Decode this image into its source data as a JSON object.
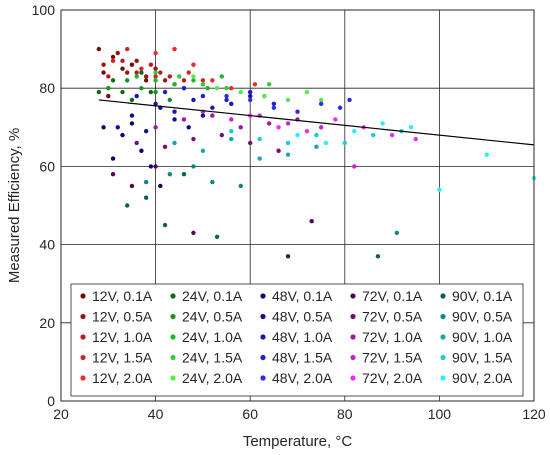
{
  "chart_data": {
    "type": "scatter",
    "title": "",
    "xlabel": "Temperature, °C",
    "ylabel": "Measured Efficiency, %",
    "xlim": [
      20,
      120
    ],
    "ylim": [
      0,
      100
    ],
    "xticks": [
      20,
      40,
      60,
      80,
      100,
      120
    ],
    "yticks": [
      0,
      20,
      40,
      60,
      80,
      100
    ],
    "grid": true,
    "legend_position": "bottom",
    "legend_columns": 5,
    "fit_line": {
      "x": [
        28,
        120
      ],
      "y": [
        77,
        65.5
      ],
      "color": "#000000"
    },
    "series": [
      {
        "name": "12V, 0.1A",
        "color": "#7a0a0a",
        "points": [
          [
            28,
            90
          ],
          [
            29,
            84
          ],
          [
            31,
            88
          ],
          [
            33,
            85
          ],
          [
            35,
            86
          ],
          [
            38,
            82
          ],
          [
            30,
            78
          ]
        ]
      },
      {
        "name": "12V, 0.5A",
        "color": "#991515",
        "points": [
          [
            29,
            86
          ],
          [
            32,
            89
          ],
          [
            34,
            84
          ],
          [
            36,
            87
          ],
          [
            38,
            83
          ],
          [
            40,
            85
          ],
          [
            42,
            82
          ]
        ]
      },
      {
        "name": "12V, 1.0A",
        "color": "#b81e1e",
        "points": [
          [
            30,
            83
          ],
          [
            33,
            87
          ],
          [
            36,
            84
          ],
          [
            39,
            86
          ],
          [
            41,
            84
          ],
          [
            43,
            83
          ],
          [
            46,
            82
          ]
        ]
      },
      {
        "name": "12V, 1.5A",
        "color": "#d42424",
        "points": [
          [
            31,
            87
          ],
          [
            34,
            90
          ],
          [
            37,
            85
          ],
          [
            40,
            83
          ],
          [
            44,
            81
          ],
          [
            47,
            84
          ],
          [
            50,
            82
          ]
        ]
      },
      {
        "name": "12V, 2.0A",
        "color": "#ee2a2a",
        "points": [
          [
            40,
            89
          ],
          [
            44,
            90
          ],
          [
            48,
            86
          ],
          [
            52,
            82
          ],
          [
            56,
            80
          ],
          [
            61,
            81
          ],
          [
            63,
            78
          ]
        ]
      },
      {
        "name": "24V, 0.1A",
        "color": "#0e6b14",
        "points": [
          [
            28,
            79
          ],
          [
            31,
            82
          ],
          [
            33,
            79
          ],
          [
            35,
            77
          ],
          [
            37,
            84
          ],
          [
            39,
            79
          ]
        ]
      },
      {
        "name": "24V, 0.5A",
        "color": "#169220",
        "points": [
          [
            30,
            80
          ],
          [
            34,
            82
          ],
          [
            37,
            80
          ],
          [
            40,
            79
          ],
          [
            43,
            77
          ],
          [
            46,
            80
          ]
        ]
      },
      {
        "name": "24V, 1.0A",
        "color": "#1fb42a",
        "points": [
          [
            36,
            83
          ],
          [
            40,
            82
          ],
          [
            44,
            81
          ],
          [
            48,
            82
          ],
          [
            51,
            80
          ],
          [
            54,
            83
          ]
        ]
      },
      {
        "name": "24V, 1.5A",
        "color": "#2ece35",
        "points": [
          [
            40,
            84
          ],
          [
            45,
            83
          ],
          [
            50,
            81
          ],
          [
            55,
            80
          ],
          [
            60,
            79
          ],
          [
            64,
            81
          ]
        ]
      },
      {
        "name": "24V, 2.0A",
        "color": "#52ec4e",
        "points": [
          [
            48,
            83
          ],
          [
            53,
            80
          ],
          [
            58,
            79
          ],
          [
            63,
            78
          ],
          [
            68,
            77
          ],
          [
            72,
            79
          ],
          [
            75,
            77
          ]
        ]
      },
      {
        "name": "48V, 0.1A",
        "color": "#0a0a68",
        "points": [
          [
            29,
            70
          ],
          [
            31,
            62
          ],
          [
            33,
            68
          ],
          [
            35,
            71
          ],
          [
            37,
            64
          ],
          [
            39,
            60
          ],
          [
            41,
            55
          ]
        ]
      },
      {
        "name": "48V, 0.5A",
        "color": "#10108c",
        "points": [
          [
            32,
            70
          ],
          [
            35,
            73
          ],
          [
            38,
            69
          ],
          [
            41,
            75
          ],
          [
            44,
            72
          ],
          [
            47,
            70
          ],
          [
            50,
            73
          ]
        ]
      },
      {
        "name": "48V, 1.0A",
        "color": "#1616b0",
        "points": [
          [
            36,
            78
          ],
          [
            40,
            76
          ],
          [
            44,
            74
          ],
          [
            48,
            77
          ],
          [
            52,
            75
          ],
          [
            56,
            76
          ],
          [
            60,
            78
          ]
        ]
      },
      {
        "name": "48V, 1.5A",
        "color": "#1e1ed0",
        "points": [
          [
            42,
            79
          ],
          [
            46,
            80
          ],
          [
            50,
            78
          ],
          [
            55,
            77
          ],
          [
            60,
            79
          ],
          [
            65,
            76
          ]
        ]
      },
      {
        "name": "48V, 2.0A",
        "color": "#2c2cf0",
        "points": [
          [
            55,
            78
          ],
          [
            60,
            77
          ],
          [
            65,
            75
          ],
          [
            70,
            74
          ],
          [
            75,
            76
          ],
          [
            79,
            75
          ],
          [
            81,
            77
          ]
        ]
      },
      {
        "name": "72V, 0.1A",
        "color": "#520852",
        "points": [
          [
            31,
            58
          ],
          [
            35,
            55
          ],
          [
            40,
            60
          ],
          [
            48,
            43
          ],
          [
            68,
            37
          ],
          [
            73,
            46
          ]
        ]
      },
      {
        "name": "72V, 0.5A",
        "color": "#780e78",
        "points": [
          [
            36,
            66
          ],
          [
            42,
            65
          ],
          [
            48,
            67
          ],
          [
            54,
            68
          ],
          [
            60,
            66
          ],
          [
            66,
            64
          ]
        ]
      },
      {
        "name": "72V, 1.0A",
        "color": "#a018a0",
        "points": [
          [
            40,
            70
          ],
          [
            46,
            72
          ],
          [
            52,
            73
          ],
          [
            58,
            70
          ],
          [
            64,
            71
          ],
          [
            70,
            72
          ]
        ]
      },
      {
        "name": "72V, 1.5A",
        "color": "#ca22ca",
        "points": [
          [
            50,
            74
          ],
          [
            56,
            72
          ],
          [
            62,
            73
          ],
          [
            68,
            71
          ],
          [
            75,
            70
          ],
          [
            82,
            60
          ]
        ]
      },
      {
        "name": "72V, 2.0A",
        "color": "#f02cf0",
        "points": [
          [
            60,
            73
          ],
          [
            66,
            70
          ],
          [
            72,
            69
          ],
          [
            78,
            72
          ],
          [
            84,
            70
          ],
          [
            90,
            68
          ],
          [
            95,
            67
          ]
        ]
      },
      {
        "name": "90V, 0.1A",
        "color": "#0a5e5e",
        "points": [
          [
            34,
            50
          ],
          [
            38,
            52
          ],
          [
            42,
            45
          ],
          [
            46,
            58
          ],
          [
            53,
            42
          ],
          [
            87,
            37
          ]
        ]
      },
      {
        "name": "90V, 0.5A",
        "color": "#0e8484",
        "points": [
          [
            38,
            56
          ],
          [
            43,
            58
          ],
          [
            48,
            60
          ],
          [
            52,
            56
          ],
          [
            58,
            55
          ],
          [
            91,
            43
          ]
        ]
      },
      {
        "name": "90V, 1.0A",
        "color": "#16a8a8",
        "points": [
          [
            44,
            66
          ],
          [
            50,
            64
          ],
          [
            56,
            67
          ],
          [
            62,
            62
          ],
          [
            68,
            63
          ],
          [
            74,
            65
          ]
        ]
      },
      {
        "name": "90V, 1.5A",
        "color": "#20cccc",
        "points": [
          [
            56,
            69
          ],
          [
            62,
            67
          ],
          [
            68,
            66
          ],
          [
            74,
            68
          ],
          [
            80,
            66
          ],
          [
            86,
            68
          ],
          [
            92,
            69
          ]
        ]
      },
      {
        "name": "90V, 2.0A",
        "color": "#2cf0f0",
        "points": [
          [
            70,
            68
          ],
          [
            76,
            66
          ],
          [
            82,
            69
          ],
          [
            88,
            71
          ],
          [
            94,
            70
          ],
          [
            100,
            54
          ],
          [
            110,
            63
          ],
          [
            120,
            57
          ]
        ]
      }
    ]
  }
}
